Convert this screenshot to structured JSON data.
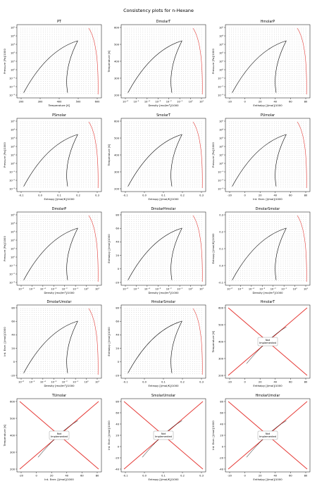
{
  "figure": {
    "title": "Consistency plots for n-Hexane"
  },
  "colors": {
    "grid_pts": "#222222",
    "envelope": "#000000",
    "boundary": "#e53935",
    "cross": "#e53935"
  },
  "placeholder_text": "Not\nImplemented",
  "chart_data": [
    {
      "type": "scatter",
      "title": "PT",
      "xlabel": "Temperature [K]",
      "ylabel": "Pressure [Pa]/1000",
      "xticks": [
        "200",
        "300",
        "400",
        "500",
        "600"
      ],
      "yticks": [
        "10⁵",
        "10⁴",
        "10³",
        "10²",
        "10¹",
        "10⁰",
        "10⁻¹",
        "10⁻²",
        "10⁻³"
      ],
      "xlim": [
        177,
        640
      ],
      "ylim_log10": [
        -3,
        5
      ],
      "saturation_curve": true,
      "placeholder": false
    },
    {
      "type": "scatter",
      "title": "DmolarT",
      "xlabel": "Density [mol/m³]/1000",
      "ylabel": "Temperature [K]",
      "xticks": [
        "10⁻⁶",
        "10⁻⁵",
        "10⁻⁴",
        "10⁻³",
        "10⁻²",
        "10⁻¹",
        "10⁰",
        "10¹"
      ],
      "yticks": [
        "600",
        "500",
        "400",
        "300",
        "200"
      ],
      "xlim_log10": [
        -6,
        1
      ],
      "ylim": [
        177,
        610
      ],
      "placeholder": false
    },
    {
      "type": "scatter",
      "title": "HmolarP",
      "xlabel": "Enthalpy [J/mol]/1000",
      "ylabel": "Pressure [Pa]/1000",
      "xticks": [
        "-20",
        "0",
        "20",
        "40",
        "60",
        "80"
      ],
      "yticks": [
        "10⁵",
        "10⁴",
        "10³",
        "10²",
        "10¹",
        "10⁰",
        "10⁻¹",
        "10⁻²",
        "10⁻³"
      ],
      "xlim": [
        -30,
        90
      ],
      "ylim_log10": [
        -3,
        5
      ],
      "placeholder": false
    },
    {
      "type": "scatter",
      "title": "PSmolar",
      "xlabel": "Entropy [J/mol/K]/1000",
      "ylabel": "Pressure [Pa]/1000",
      "xticks": [
        "-0.1",
        "0.0",
        "0.1",
        "0.2",
        "0.3"
      ],
      "yticks": [
        "10⁵",
        "10⁴",
        "10³",
        "10²",
        "10¹",
        "10⁰",
        "10⁻¹",
        "10⁻²",
        "10⁻³"
      ],
      "xlim": [
        -0.15,
        0.31
      ],
      "ylim_log10": [
        -3,
        5
      ],
      "placeholder": false
    },
    {
      "type": "scatter",
      "title": "SmolarT",
      "xlabel": "Entropy [J/mol/K]/1000",
      "ylabel": "Temperature [K]",
      "xticks": [
        "-0.1",
        "0.0",
        "0.1",
        "0.2",
        "0.3"
      ],
      "yticks": [
        "600",
        "500",
        "400",
        "300",
        "200"
      ],
      "xlim": [
        -0.15,
        0.31
      ],
      "ylim": [
        177,
        610
      ],
      "placeholder": false
    },
    {
      "type": "scatter",
      "title": "PUmolar",
      "xlabel": "Int. Ener. [J/mol]/1000",
      "ylabel": "Pressure [Pa]/1000",
      "xticks": [
        "-20",
        "0",
        "20",
        "40",
        "60",
        "80"
      ],
      "yticks": [
        "10⁵",
        "10⁴",
        "10³",
        "10²",
        "10¹",
        "10⁰",
        "10⁻¹",
        "10⁻²",
        "10⁻³"
      ],
      "xlim": [
        -30,
        90
      ],
      "ylim_log10": [
        -3,
        5
      ],
      "placeholder": false
    },
    {
      "type": "scatter",
      "title": "DmolarP",
      "xlabel": "Density [mol/m³]/1000",
      "ylabel": "Pressure [Pa]/1000",
      "xticks": [
        "10⁻⁶",
        "10⁻⁵",
        "10⁻⁴",
        "10⁻³",
        "10⁻²",
        "10⁻¹",
        "10⁰",
        "10¹"
      ],
      "yticks": [
        "10⁵",
        "10⁴",
        "10³",
        "10²",
        "10¹",
        "10⁰",
        "10⁻¹",
        "10⁻²",
        "10⁻³"
      ],
      "xlim_log10": [
        -6,
        1
      ],
      "ylim_log10": [
        -3,
        5
      ],
      "placeholder": false
    },
    {
      "type": "scatter",
      "title": "DmolarHmolar",
      "xlabel": "Density [mol/m³]/1000",
      "ylabel": "Enthalpy [J/mol]/1000",
      "xticks": [
        "10⁻⁶",
        "10⁻⁵",
        "10⁻⁴",
        "10⁻³",
        "10⁻²",
        "10⁻¹",
        "10⁰",
        "10¹"
      ],
      "yticks": [
        "80",
        "60",
        "40",
        "20",
        "0",
        "-20"
      ],
      "xlim_log10": [
        -6,
        1
      ],
      "ylim": [
        -30,
        90
      ],
      "placeholder": false
    },
    {
      "type": "scatter",
      "title": "DmolarSmolar",
      "xlabel": "Density [mol/m³]/1000",
      "ylabel": "Entropy [J/mol/K]/1000",
      "xticks": [
        "10⁻⁶",
        "10⁻⁵",
        "10⁻⁴",
        "10⁻³",
        "10⁻²",
        "10⁻¹",
        "10⁰",
        "10¹"
      ],
      "yticks": [
        "0.3",
        "0.2",
        "0.1",
        "0.0",
        "-0.1"
      ],
      "xlim_log10": [
        -6,
        1
      ],
      "ylim": [
        -0.15,
        0.31
      ],
      "placeholder": false
    },
    {
      "type": "scatter",
      "title": "DmolarUmolar",
      "xlabel": "Density [mol/m³]/1000",
      "ylabel": "Int. Ener. [J/mol]/1000",
      "xticks": [
        "10⁻⁶",
        "10⁻⁵",
        "10⁻⁴",
        "10⁻³",
        "10⁻²",
        "10⁻¹",
        "10⁰",
        "10¹"
      ],
      "yticks": [
        "80",
        "60",
        "40",
        "20",
        "0",
        "-20"
      ],
      "xlim_log10": [
        -6,
        1
      ],
      "ylim": [
        -30,
        90
      ],
      "placeholder": false
    },
    {
      "type": "scatter",
      "title": "HmolarSmolar",
      "xlabel": "Entropy [J/mol/K]/1000",
      "ylabel": "Enthalpy [J/mol]/1000",
      "xticks": [
        "-0.1",
        "0.0",
        "0.1",
        "0.2",
        "0.3"
      ],
      "yticks": [
        "80",
        "60",
        "40",
        "20",
        "0",
        "-20"
      ],
      "xlim": [
        -0.15,
        0.31
      ],
      "ylim": [
        -30,
        90
      ],
      "placeholder": false
    },
    {
      "type": "scatter",
      "title": "HmolarT",
      "xlabel": "Enthalpy [J/mol]/1000",
      "ylabel": "Temperature [K]",
      "xticks": [
        "-20",
        "0",
        "20",
        "40",
        "60",
        "80"
      ],
      "yticks": [
        "600",
        "500",
        "400",
        "300",
        "200"
      ],
      "xlim": [
        -30,
        90
      ],
      "ylim": [
        177,
        610
      ],
      "placeholder": true
    },
    {
      "type": "scatter",
      "title": "TUmolar",
      "xlabel": "Int. Ener. [J/mol]/1000",
      "ylabel": "Temperature [K]",
      "xticks": [
        "-20",
        "0",
        "20",
        "40",
        "60",
        "80"
      ],
      "yticks": [
        "600",
        "500",
        "400",
        "300",
        "200"
      ],
      "xlim": [
        -30,
        90
      ],
      "ylim": [
        177,
        610
      ],
      "placeholder": true
    },
    {
      "type": "scatter",
      "title": "SmolarUmolar",
      "xlabel": "Entropy [J/mol/K]/1000",
      "ylabel": "Int. Ener. [J/mol]/1000",
      "xticks": [
        "-0.1",
        "0.0",
        "0.1",
        "0.2",
        "0.3"
      ],
      "yticks": [
        "80",
        "60",
        "40",
        "20",
        "0",
        "-20",
        "-40"
      ],
      "xlim": [
        -0.15,
        0.31
      ],
      "ylim": [
        -45,
        90
      ],
      "placeholder": true
    },
    {
      "type": "scatter",
      "title": "HmolarUmolar",
      "xlabel": "Enthalpy [J/mol]/1000",
      "ylabel": "Int. Ener. [J/mol]/1000",
      "xticks": [
        "-20",
        "0",
        "20",
        "40",
        "60",
        "80"
      ],
      "yticks": [
        "80",
        "60",
        "40",
        "20",
        "0",
        "-20",
        "-40"
      ],
      "xlim": [
        -30,
        90
      ],
      "ylim": [
        -45,
        90
      ],
      "placeholder": true
    }
  ]
}
